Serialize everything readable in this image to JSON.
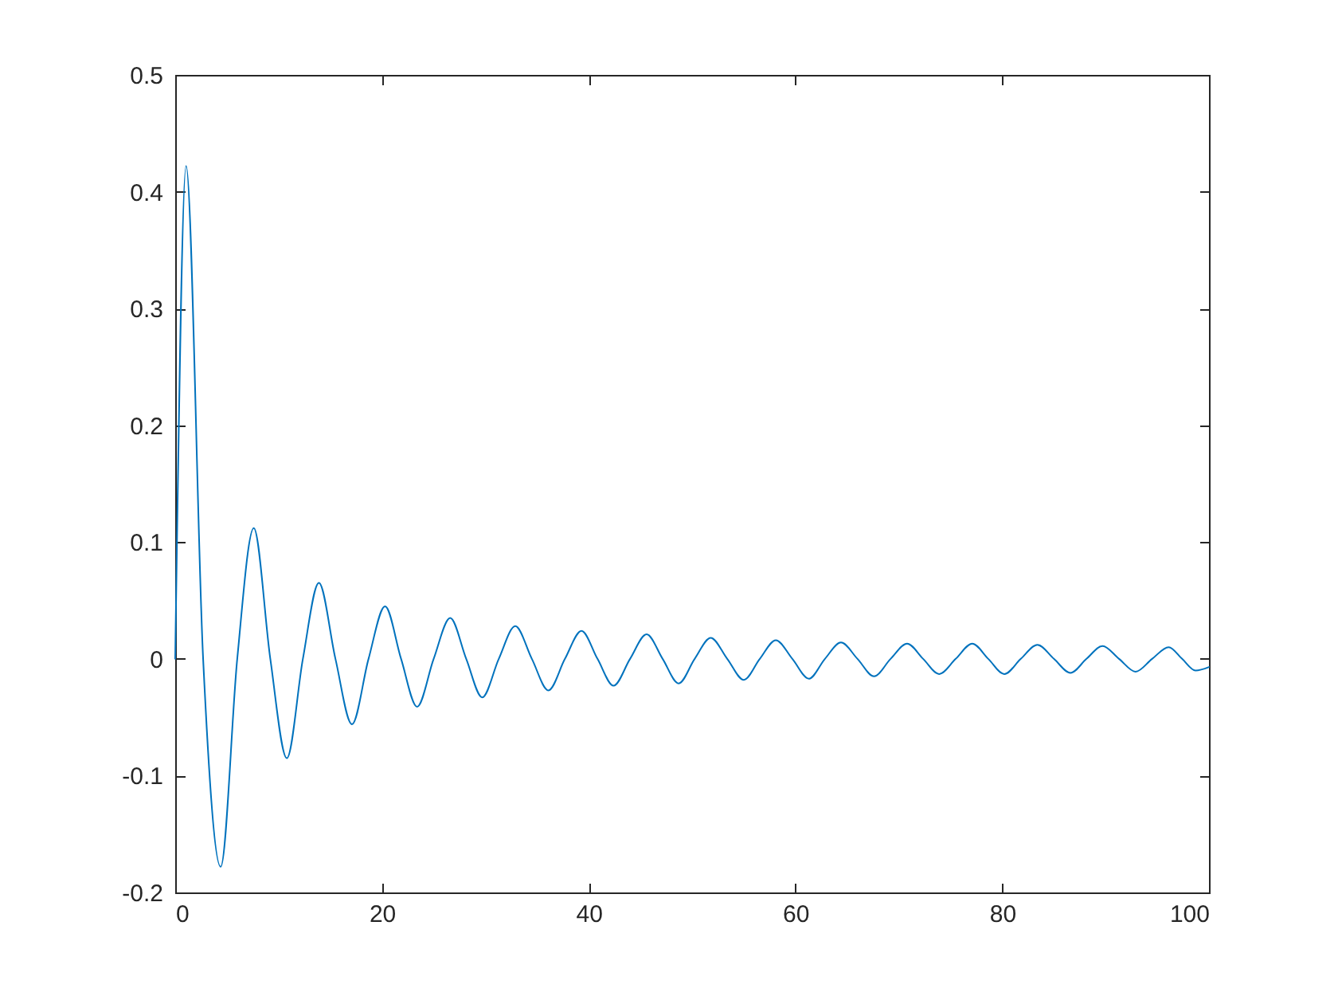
{
  "chart_data": {
    "type": "line",
    "x": [
      0,
      1.05,
      2.7,
      4.4,
      6.0,
      7.6,
      9.2,
      10.8,
      12.35,
      13.9,
      15.5,
      17.1,
      18.7,
      20.3,
      21.85,
      23.4,
      25.0,
      26.6,
      28.15,
      29.7,
      31.3,
      32.9,
      34.5,
      36.1,
      37.7,
      39.3,
      40.85,
      42.4,
      44.0,
      45.6,
      47.15,
      48.7,
      50.25,
      51.8,
      53.4,
      55.0,
      56.55,
      58.1,
      59.7,
      61.3,
      62.85,
      64.4,
      66.0,
      67.6,
      69.2,
      70.8,
      72.35,
      73.9,
      75.5,
      77.1,
      78.65,
      80.2,
      81.8,
      83.4,
      85.0,
      86.6,
      88.15,
      89.7,
      91.3,
      92.9,
      94.5,
      96.1,
      97.4,
      98.7,
      100
    ],
    "series": [
      {
        "color": "#0072bd",
        "values": [
          0,
          0.422,
          0,
          -0.178,
          0,
          0.112,
          0,
          -0.085,
          0,
          0.065,
          0,
          -0.056,
          0,
          0.045,
          0,
          -0.041,
          0,
          0.035,
          0,
          -0.033,
          0,
          0.028,
          0,
          -0.027,
          0,
          0.024,
          0,
          -0.023,
          0,
          0.021,
          0,
          -0.021,
          0,
          0.018,
          0,
          -0.018,
          0,
          0.016,
          0,
          -0.017,
          0,
          0.014,
          0,
          -0.015,
          0,
          0.013,
          0,
          -0.013,
          0,
          0.013,
          0,
          -0.013,
          0,
          0.012,
          0,
          -0.012,
          0,
          0.011,
          0,
          -0.011,
          0,
          0.01,
          0,
          -0.01,
          -0.007
        ]
      }
    ],
    "xlim": [
      0,
      100
    ],
    "xticks": [
      0,
      20,
      40,
      60,
      80,
      100
    ],
    "ylim": [
      -0.2,
      0.5
    ],
    "yticks": [
      -0.2,
      -0.1,
      0,
      0.1,
      0.2,
      0.3,
      0.4,
      0.5
    ]
  }
}
